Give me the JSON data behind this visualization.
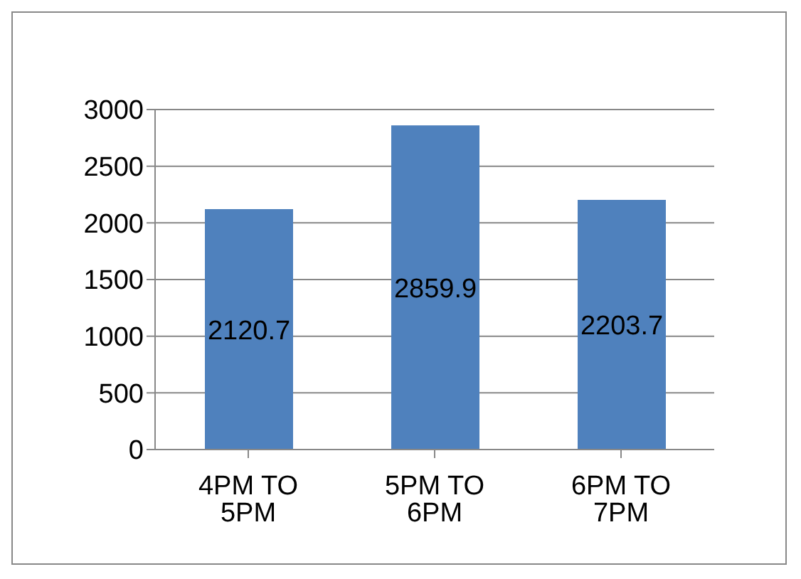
{
  "chart_data": {
    "type": "bar",
    "categories": [
      "4PM TO 5PM",
      "5PM TO 6PM",
      "6PM TO 7PM"
    ],
    "values": [
      2120.7,
      2859.9,
      2203.7
    ],
    "color": "#4f81bd",
    "ylim": [
      0,
      3000
    ],
    "yticks": [
      0,
      500,
      1000,
      1500,
      2000,
      2500,
      3000
    ],
    "grid": "y",
    "data_labels": true
  }
}
